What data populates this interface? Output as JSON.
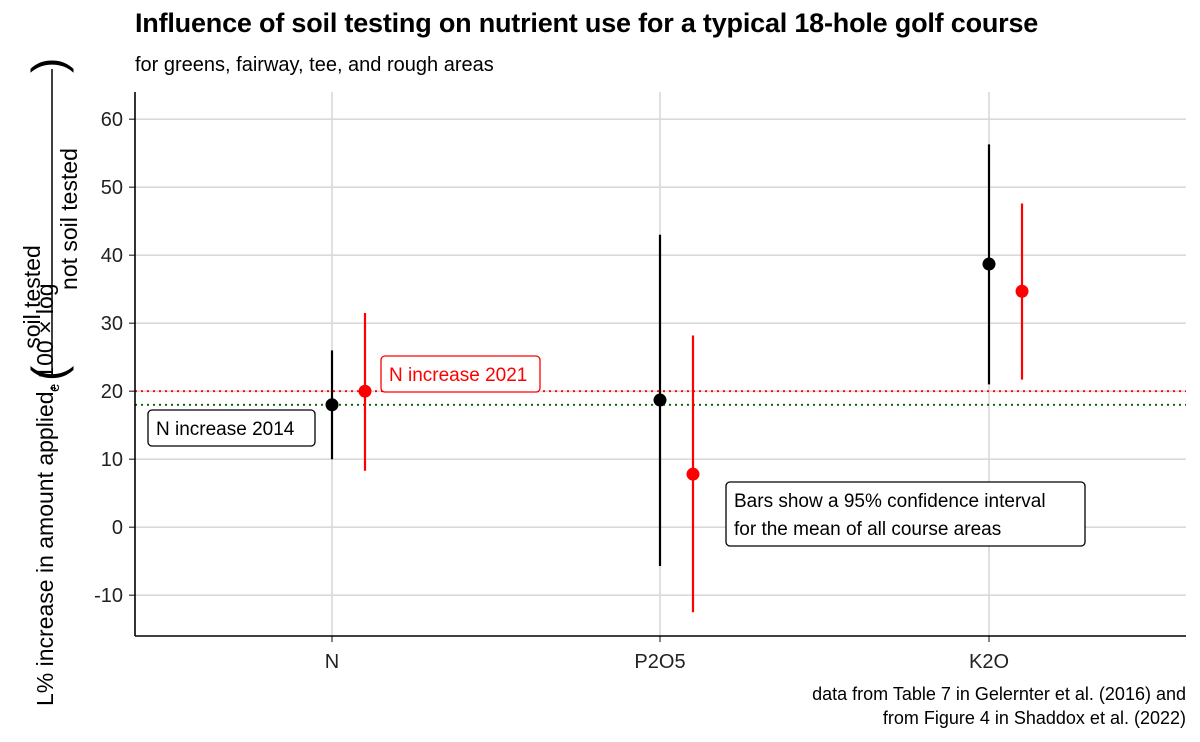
{
  "chart_data": {
    "type": "scatter",
    "title": "Influence of soil testing on nutrient use for a typical 18-hole golf course",
    "subtitle": "for greens, fairway, tee, and rough areas",
    "ylabel": {
      "main": "L% increase in amount applied, 100 × log",
      "subscript": "e",
      "fraction_numerator": "soil tested",
      "fraction_denominator": "not soil tested"
    },
    "xlabel": "",
    "categories": [
      "N",
      "P2O5",
      "K2O"
    ],
    "ylim": [
      -16,
      64
    ],
    "yticks": [
      60,
      50,
      40,
      30,
      20,
      10,
      0,
      -10
    ],
    "ytick_labels": [
      "60",
      "50",
      "40",
      "30",
      "20",
      "10",
      "0",
      "-10"
    ],
    "grid": true,
    "legend": "none",
    "series": [
      {
        "color": "#000000",
        "values": [
          18,
          18.7,
          38.7
        ],
        "lower": [
          10,
          -5.7,
          21
        ],
        "upper": [
          26,
          43,
          56.3
        ]
      },
      {
        "color": "#ff0000",
        "values": [
          20,
          7.8,
          34.7
        ],
        "lower": [
          8.3,
          -12.5,
          21.7
        ],
        "upper": [
          31.5,
          28.2,
          47.6
        ]
      }
    ],
    "reference_lines": [
      {
        "value": 20,
        "color": "#ff0000",
        "style": "dotted"
      },
      {
        "value": 18,
        "color": "#006400",
        "style": "dotted"
      }
    ],
    "annotations": [
      {
        "text": "N increase 2021",
        "color": "#ff0000"
      },
      {
        "text": "N increase 2014",
        "color": "#000000"
      },
      {
        "lines": [
          "Bars show a 95% confidence interval",
          "for the mean of all course areas"
        ],
        "color": "#000000"
      }
    ],
    "caption": [
      "data from Table 7 in Gelernter et al. (2016) and",
      "from Figure 4 in Shaddox et al. (2022)"
    ]
  }
}
